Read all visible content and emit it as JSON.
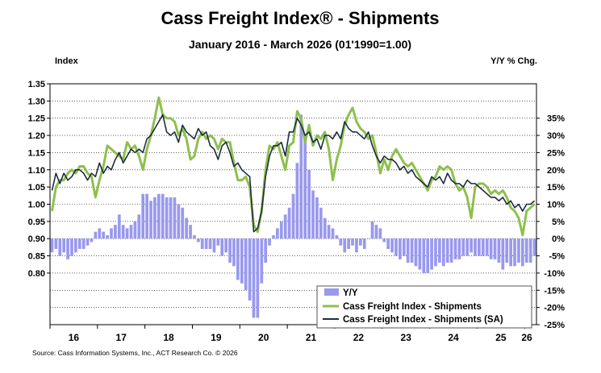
{
  "chart_data": {
    "type": "bar+line",
    "title": "Cass Freight Index® - Shipments",
    "subtitle": "January 2016 - March 2026 (01'1990=1.00)",
    "ylabel_left": "Index",
    "ylabel_right": "Y/Y % Chg.",
    "source": "Source: Cass Information Systems, Inc., ACT Research Co. © 2026",
    "left_axis": {
      "range": [
        0.65,
        1.35
      ],
      "ticks": [
        "1.35",
        "1.30",
        "1.25",
        "1.20",
        "1.15",
        "1.10",
        "1.05",
        "1.00",
        "0.95",
        "0.90",
        "0.85",
        "0.80"
      ],
      "tick_values": [
        1.35,
        1.3,
        1.25,
        1.2,
        1.15,
        1.1,
        1.05,
        1.0,
        0.95,
        0.9,
        0.85,
        0.8
      ]
    },
    "right_axis": {
      "range": [
        -25,
        45
      ],
      "ticks": [
        "35%",
        "30%",
        "25%",
        "20%",
        "15%",
        "10%",
        "5%",
        "0%",
        "-5%",
        "-10%",
        "-15%",
        "-20%",
        "-25%"
      ],
      "tick_values": [
        35,
        30,
        25,
        20,
        15,
        10,
        5,
        0,
        -5,
        -10,
        -15,
        -20,
        -25
      ]
    },
    "x_axis": {
      "start": "2016-01",
      "months": 123,
      "year_labels": [
        "16",
        "17",
        "18",
        "19",
        "20",
        "21",
        "22",
        "23",
        "24",
        "25",
        "26"
      ]
    },
    "legend": {
      "placement": "bottom-right",
      "entries": [
        "Y/Y",
        "Cass Freight Index - Shipments",
        "Cass Freight Index - Shipments (SA)"
      ]
    },
    "colors": {
      "yy": "#9999ee",
      "shipments": "#8fbf4f",
      "sa": "#1c2e3e",
      "grid": "#000000"
    },
    "series": [
      {
        "name": "Cass Freight Index - Shipments",
        "values": [
          0.98,
          1.05,
          1.07,
          1.07,
          1.09,
          1.1,
          1.09,
          1.11,
          1.11,
          1.09,
          1.08,
          1.02,
          1.07,
          1.11,
          1.17,
          1.16,
          1.15,
          1.14,
          1.13,
          1.18,
          1.16,
          1.17,
          1.14,
          1.1,
          1.16,
          1.2,
          1.25,
          1.31,
          1.26,
          1.25,
          1.25,
          1.24,
          1.2,
          1.22,
          1.19,
          1.13,
          1.14,
          1.19,
          1.21,
          1.19,
          1.2,
          1.19,
          1.16,
          1.19,
          1.18,
          1.18,
          1.12,
          1.07,
          1.07,
          1.08,
          1.05,
          0.94,
          0.92,
          0.98,
          1.1,
          1.17,
          1.16,
          1.18,
          1.14,
          1.1,
          1.17,
          1.18,
          1.27,
          1.25,
          1.18,
          1.23,
          1.17,
          1.2,
          1.19,
          1.21,
          1.16,
          1.07,
          1.13,
          1.17,
          1.23,
          1.26,
          1.28,
          1.24,
          1.22,
          1.21,
          1.19,
          1.2,
          1.15,
          1.09,
          1.13,
          1.1,
          1.14,
          1.16,
          1.14,
          1.12,
          1.11,
          1.12,
          1.1,
          1.08,
          1.06,
          1.04,
          1.07,
          1.08,
          1.11,
          1.1,
          1.11,
          1.1,
          1.06,
          1.04,
          1.05,
          1.02,
          0.96,
          1.05,
          1.06,
          1.06,
          1.05,
          1.03,
          1.04,
          1.03,
          1.04,
          1.02,
          0.99,
          0.98,
          0.96,
          0.91,
          0.98,
          0.99,
          1.0
        ]
      },
      {
        "name": "Cass Freight Index - Shipments (SA)",
        "values": [
          1.04,
          1.09,
          1.06,
          1.09,
          1.07,
          1.08,
          1.1,
          1.1,
          1.09,
          1.07,
          1.09,
          1.08,
          1.12,
          1.09,
          1.11,
          1.1,
          1.13,
          1.15,
          1.12,
          1.14,
          1.16,
          1.15,
          1.16,
          1.15,
          1.19,
          1.2,
          1.22,
          1.24,
          1.26,
          1.21,
          1.2,
          1.21,
          1.18,
          1.23,
          1.21,
          1.2,
          1.19,
          1.22,
          1.2,
          1.21,
          1.17,
          1.16,
          1.13,
          1.17,
          1.18,
          1.15,
          1.11,
          1.12,
          1.1,
          1.09,
          1.08,
          0.92,
          0.93,
          0.98,
          1.08,
          1.14,
          1.17,
          1.17,
          1.18,
          1.14,
          1.21,
          1.21,
          1.25,
          1.23,
          1.2,
          1.21,
          1.18,
          1.19,
          1.16,
          1.2,
          1.2,
          1.19,
          1.21,
          1.19,
          1.24,
          1.22,
          1.21,
          1.21,
          1.2,
          1.19,
          1.21,
          1.17,
          1.14,
          1.12,
          1.14,
          1.13,
          1.13,
          1.12,
          1.1,
          1.11,
          1.09,
          1.1,
          1.08,
          1.07,
          1.06,
          1.05,
          1.08,
          1.07,
          1.08,
          1.06,
          1.09,
          1.07,
          1.06,
          1.06,
          1.05,
          1.07,
          1.06,
          1.06,
          1.05,
          1.04,
          1.03,
          1.02,
          1.02,
          1.01,
          1.02,
          1.0,
          1.01,
          0.99,
          1.0,
          0.98,
          1.0,
          1.0,
          1.01
        ]
      },
      {
        "name": "Y/Y",
        "values": [
          -4,
          -3,
          -5,
          -4,
          -6,
          -5,
          -4,
          -3,
          -3,
          -2,
          -1,
          2,
          3,
          2,
          1,
          3,
          4,
          7,
          4,
          3,
          4,
          5,
          7,
          13,
          13,
          11,
          12,
          13,
          13,
          12,
          12,
          12,
          10,
          9,
          6,
          4,
          1,
          -1,
          -3,
          -3,
          -3,
          -4,
          -2,
          -5,
          -4,
          -7,
          -8,
          -12,
          -13,
          -15,
          -18,
          -23,
          -23,
          -13,
          -7,
          -2,
          1,
          3,
          5,
          7,
          9,
          13,
          22,
          36,
          30,
          20,
          14,
          12,
          9,
          6,
          4,
          3,
          1,
          -2,
          -4,
          -3,
          -2,
          -4,
          -2,
          -3,
          0,
          5,
          4,
          3,
          -1,
          -3,
          -4,
          -5,
          -6,
          -5,
          -7,
          -7,
          -8,
          -9,
          -10,
          -10,
          -9,
          -8,
          -7,
          -8,
          -7,
          -7,
          -6,
          -6,
          -5,
          -5,
          -4,
          -5,
          -5,
          -5,
          -5,
          -6,
          -6,
          -7,
          -9,
          -7,
          -8,
          -8,
          -7,
          -8,
          -7,
          -7,
          -5
        ]
      }
    ]
  }
}
